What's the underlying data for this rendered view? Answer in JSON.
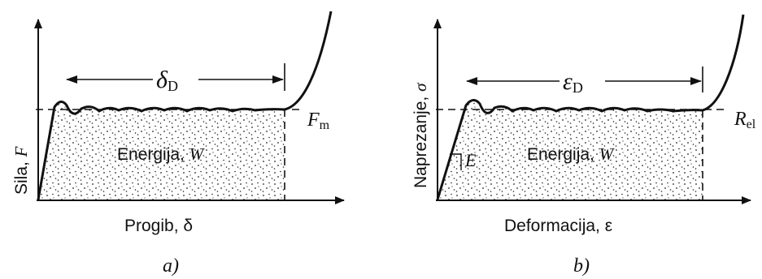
{
  "panel_a": {
    "y_axis_label": "Sila, ",
    "y_axis_symbol": "F",
    "x_axis_label": "Progib, δ",
    "span_symbol": "δ",
    "span_subscript": "D",
    "level_symbol": "F",
    "level_subscript": "m",
    "area_label": "Energija, ",
    "area_symbol": "W",
    "caption": "a)"
  },
  "panel_b": {
    "y_axis_label": "Naprezanje, ",
    "y_axis_symbol": "σ",
    "x_axis_label": "Deformacija, ε",
    "span_symbol": "ε",
    "span_subscript": "D",
    "level_symbol": "R",
    "level_subscript": "el",
    "slope_symbol": "E",
    "area_label": "Energija, ",
    "area_symbol": "W",
    "caption": "b)"
  },
  "colors": {
    "ink": "#111111",
    "background": "#ffffff"
  }
}
